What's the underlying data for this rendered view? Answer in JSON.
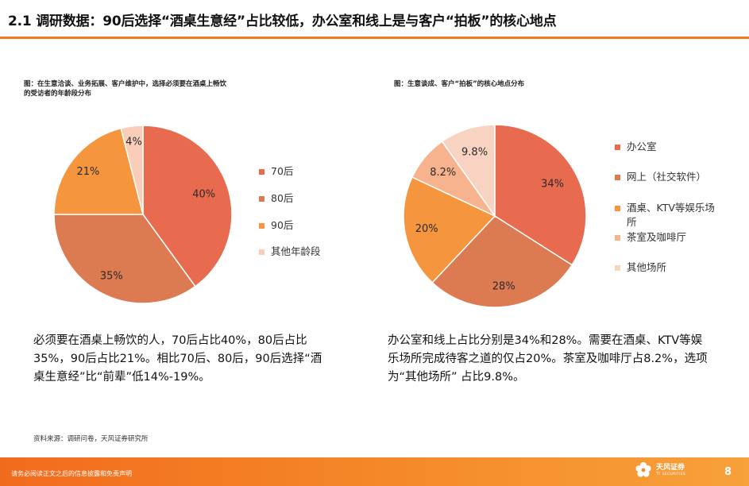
{
  "page": {
    "title": "2.1 调研数据：90后选择“酒桌生意经”占比较低，办公室和线上是与客户“拍板”的核心地点",
    "source": "资料来源：调研问卷，天风证券研究所",
    "disclaimer": "请务必阅读正文之后的信息披露和免责声明",
    "page_number": "8",
    "logo_cn": "天风证券",
    "logo_en": "TF SECURITIES",
    "accent_color": "#f07c1f"
  },
  "summaries": {
    "left": "必须要在酒桌上畅饮的人，70后占比40%，80后占比35%，90后占比21%。相比70后、80后，90后选择“酒桌生意经”比“前辈”低14%-19%。",
    "right": "办公室和线上占比分别是34%和28%。需要在酒桌、KTV等娱乐场所完成待客之道的仅占20%。茶室及咖啡厅占8.2%，选项为“其他场所” 占比9.8%。"
  },
  "chart_data": [
    {
      "type": "pie",
      "title": "图：在生意洽谈、业务拓展、客户维护中，选择必须要在酒桌上畅饮的受访者的年龄段分布",
      "categories": [
        "70后",
        "80后",
        "90后",
        "其他年龄段"
      ],
      "values": [
        40,
        35,
        21,
        4
      ],
      "labels": [
        "40%",
        "35%",
        "21%",
        "4%"
      ],
      "colors": [
        "#e86a4f",
        "#dc7a52",
        "#f5953e",
        "#f9cdb8"
      ],
      "legend": "right"
    },
    {
      "type": "pie",
      "title": "图：生意谈成、客户“拍板”的核心地点分布",
      "categories": [
        "办公室",
        "网上（社交软件）",
        "酒桌、KTV等娱乐场所",
        "茶室及咖啡厅",
        "其他场所"
      ],
      "values": [
        34,
        28,
        20,
        8.2,
        9.8
      ],
      "labels": [
        "34%",
        "28%",
        "20%",
        "8.2%",
        "9.8%"
      ],
      "colors": [
        "#e86a4f",
        "#dc7a52",
        "#f5953e",
        "#f7b38e",
        "#f9d3c2"
      ],
      "legend": "right"
    }
  ]
}
